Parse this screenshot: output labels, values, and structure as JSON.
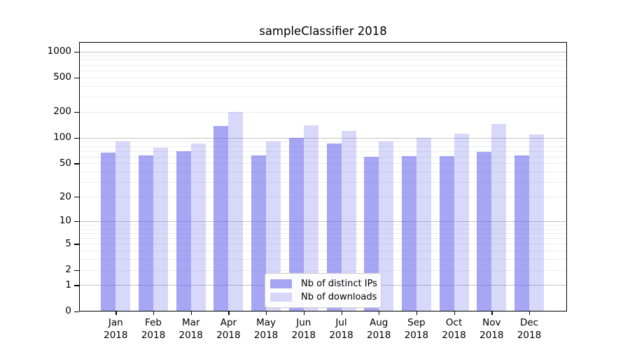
{
  "chart_data": {
    "type": "bar",
    "title": "sampleClassifier 2018",
    "categories": [
      "Jan 2018",
      "Feb 2018",
      "Mar 2018",
      "Apr 2018",
      "May 2018",
      "Jun 2018",
      "Jul 2018",
      "Aug 2018",
      "Sep 2018",
      "Oct 2018",
      "Nov 2018",
      "Dec 2018"
    ],
    "series": [
      {
        "name": "Nb of distinct IPs",
        "color": "rgba(93,93,235,0.55)",
        "values": [
          67,
          62,
          70,
          136,
          62,
          99,
          85,
          60,
          61,
          61,
          68,
          62
        ]
      },
      {
        "name": "Nb of downloads",
        "color": "rgba(93,93,235,0.24)",
        "values": [
          91,
          77,
          85,
          200,
          90,
          140,
          119,
          90,
          99,
          111,
          145,
          109
        ]
      }
    ],
    "yscale": "symlog (position proportional to log10(1+v))",
    "yticks": [
      1000,
      500,
      200,
      100,
      50,
      20,
      10,
      5,
      2,
      1,
      0
    ],
    "y_major_gridlines": [
      1,
      10,
      100,
      1000
    ],
    "ymax_visible": 1320,
    "grid": "on",
    "legend_position": "lower center",
    "colors": {
      "major_grid": "#c3c3c3",
      "minor_grid": "#ededed",
      "axis": "#000000",
      "background": "#ffffff"
    }
  }
}
